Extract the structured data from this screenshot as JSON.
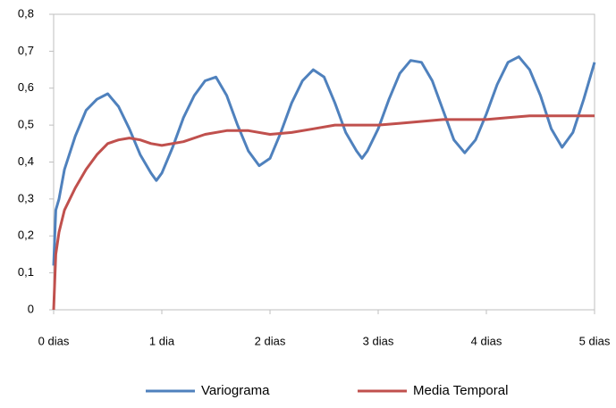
{
  "chart_data": {
    "type": "line",
    "xlim": [
      0,
      5
    ],
    "xticks": [
      {
        "value": 0,
        "label": "0 dias"
      },
      {
        "value": 1,
        "label": "1 dia"
      },
      {
        "value": 2,
        "label": "2 dias"
      },
      {
        "value": 3,
        "label": "3 dias"
      },
      {
        "value": 4,
        "label": "4 dias"
      },
      {
        "value": 5,
        "label": "5 dias"
      }
    ],
    "ylim": [
      0,
      0.8
    ],
    "yticks": [
      0,
      {
        "value": 0.1,
        "label": "0,1"
      },
      {
        "value": 0.2,
        "label": "0,2"
      },
      {
        "value": 0.3,
        "label": "0,3"
      },
      {
        "value": 0.4,
        "label": "0,4"
      },
      {
        "value": 0.5,
        "label": "0,5"
      },
      {
        "value": 0.6,
        "label": "0,6"
      },
      {
        "value": 0.7,
        "label": "0,7"
      },
      {
        "value": 0.8,
        "label": "0,8"
      }
    ],
    "grid": false,
    "legend": "bottom",
    "series": [
      {
        "name": "Variograma",
        "color": "#4f81bd",
        "x": [
          0,
          0.02,
          0.05,
          0.1,
          0.2,
          0.3,
          0.4,
          0.5,
          0.6,
          0.7,
          0.8,
          0.9,
          0.95,
          1.0,
          1.1,
          1.2,
          1.3,
          1.4,
          1.5,
          1.6,
          1.7,
          1.8,
          1.9,
          2.0,
          2.1,
          2.2,
          2.3,
          2.4,
          2.5,
          2.6,
          2.7,
          2.8,
          2.85,
          2.9,
          3.0,
          3.1,
          3.2,
          3.3,
          3.4,
          3.5,
          3.6,
          3.7,
          3.8,
          3.9,
          4.0,
          4.1,
          4.2,
          4.3,
          4.4,
          4.5,
          4.6,
          4.7,
          4.8,
          4.9,
          5.0
        ],
        "values": [
          0.12,
          0.27,
          0.3,
          0.38,
          0.47,
          0.54,
          0.57,
          0.585,
          0.55,
          0.49,
          0.42,
          0.37,
          0.35,
          0.37,
          0.44,
          0.52,
          0.58,
          0.62,
          0.63,
          0.58,
          0.5,
          0.43,
          0.39,
          0.41,
          0.48,
          0.56,
          0.62,
          0.65,
          0.63,
          0.56,
          0.48,
          0.43,
          0.41,
          0.43,
          0.49,
          0.57,
          0.64,
          0.675,
          0.67,
          0.62,
          0.54,
          0.46,
          0.425,
          0.46,
          0.53,
          0.61,
          0.67,
          0.685,
          0.65,
          0.58,
          0.49,
          0.44,
          0.48,
          0.57,
          0.67
        ]
      },
      {
        "name": "Media Temporal",
        "color": "#c0504d",
        "x": [
          0,
          0.02,
          0.05,
          0.1,
          0.2,
          0.3,
          0.4,
          0.5,
          0.6,
          0.7,
          0.8,
          0.9,
          1.0,
          1.2,
          1.4,
          1.6,
          1.8,
          2.0,
          2.2,
          2.4,
          2.6,
          2.8,
          3.0,
          3.2,
          3.4,
          3.6,
          3.8,
          4.0,
          4.2,
          4.4,
          4.6,
          4.8,
          5.0
        ],
        "values": [
          0,
          0.15,
          0.21,
          0.27,
          0.33,
          0.38,
          0.42,
          0.45,
          0.46,
          0.465,
          0.46,
          0.45,
          0.445,
          0.455,
          0.475,
          0.485,
          0.485,
          0.475,
          0.48,
          0.49,
          0.5,
          0.5,
          0.5,
          0.505,
          0.51,
          0.515,
          0.515,
          0.515,
          0.52,
          0.525,
          0.525,
          0.525,
          0.525
        ]
      }
    ]
  }
}
